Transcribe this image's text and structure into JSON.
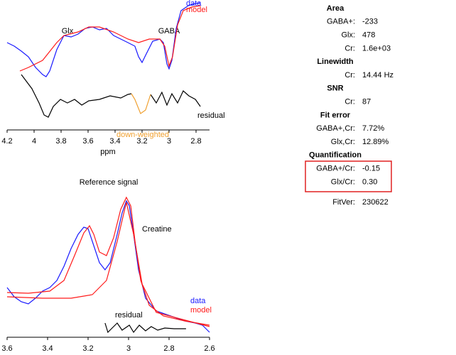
{
  "chart_data": [
    {
      "type": "line",
      "xlabel": "ppm",
      "xlim": [
        4.2,
        2.7
      ],
      "xticks": [
        4.2,
        4,
        3.8,
        3.6,
        3.4,
        3.2,
        3,
        2.8
      ],
      "ylim": [
        0,
        183
      ],
      "annotations": [
        "Glx",
        "GABA"
      ],
      "note": "down-weighted",
      "series": [
        {
          "name": "data",
          "color": "#1a1aff",
          "x": [
            4.2,
            4.147,
            4.095,
            4.042,
            3.989,
            3.937,
            3.911,
            3.884,
            3.832,
            3.779,
            3.726,
            3.674,
            3.621,
            3.568,
            3.516,
            3.463,
            3.411,
            3.358,
            3.305,
            3.253,
            3.226,
            3.2,
            3.174,
            3.121,
            3.068,
            3.042,
            3.016,
            3.0,
            2.979,
            2.947,
            2.911,
            2.858,
            2.805,
            2.768
          ],
          "values": [
            123,
            118,
            111,
            103,
            88,
            78,
            75,
            83,
            113,
            133,
            131,
            135,
            143,
            145,
            141,
            143,
            133,
            128,
            123,
            118,
            103,
            95,
            105,
            125,
            128,
            123,
            93,
            86,
            98,
            143,
            168,
            175,
            178,
            179
          ]
        },
        {
          "name": "model",
          "color": "#ff1a1a",
          "x": [
            4.105,
            4.042,
            3.937,
            3.832,
            3.779,
            3.674,
            3.595,
            3.516,
            3.411,
            3.305,
            3.226,
            3.147,
            3.068,
            3.032,
            3.0,
            2.974,
            2.937,
            2.895,
            2.832,
            2.768
          ],
          "values": [
            83,
            88,
            98,
            123,
            133,
            138,
            145,
            145,
            138,
            128,
            123,
            128,
            128,
            118,
            90,
            103,
            148,
            168,
            173,
            175
          ]
        },
        {
          "name": "residual",
          "color": "#000000",
          "x": [
            4.095,
            4.016,
            3.963,
            3.926,
            3.895,
            3.858,
            3.805,
            3.753,
            3.7,
            3.647,
            3.595,
            3.516,
            3.437,
            3.358,
            3.305,
            3.279,
            3.2,
            3.137,
            3.095,
            3.053,
            3.016,
            2.979,
            2.937,
            2.895,
            2.853,
            2.805,
            2.768
          ],
          "values": [
            78,
            58,
            38,
            21,
            18,
            33,
            43,
            38,
            43,
            35,
            41,
            43,
            48,
            45,
            50,
            51,
            null,
            50,
            38,
            53,
            35,
            51,
            38,
            55,
            48,
            43,
            33
          ]
        },
        {
          "color": "#f0a030",
          "x": [
            3.279,
            3.253,
            3.211,
            3.174,
            3.137
          ],
          "values": [
            51,
            43,
            23,
            28,
            50
          ]
        }
      ]
    },
    {
      "type": "line",
      "title": "Reference signal",
      "xlim": [
        3.6,
        2.6
      ],
      "xticks": [
        3.6,
        3.4,
        3.2,
        3,
        2.8,
        2.6
      ],
      "ylim": [
        0,
        250
      ],
      "annotations": [
        "Creatine"
      ],
      "series": [
        {
          "name": "data",
          "color": "#1a1aff",
          "x": [
            3.6,
            3.565,
            3.53,
            3.495,
            3.46,
            3.425,
            3.389,
            3.354,
            3.319,
            3.284,
            3.249,
            3.221,
            3.2,
            3.179,
            3.144,
            3.116,
            3.091,
            3.056,
            3.032,
            3.011,
            2.996,
            2.975,
            2.951,
            2.916,
            2.863,
            2.793,
            2.723,
            2.67,
            2.635,
            2.6
          ],
          "values": [
            70,
            57,
            50,
            47,
            55,
            65,
            70,
            80,
            100,
            125,
            145,
            155,
            153,
            135,
            105,
            95,
            105,
            145,
            175,
            192,
            185,
            145,
            95,
            55,
            37,
            30,
            23,
            20,
            17,
            7
          ]
        },
        {
          "name": "model",
          "color": "#ff1a1a",
          "x": [
            3.6,
            3.495,
            3.389,
            3.319,
            3.267,
            3.221,
            3.193,
            3.172,
            3.144,
            3.109,
            3.074,
            3.039,
            3.011,
            2.989,
            2.968,
            2.94,
            2.898,
            2.828,
            2.723,
            2.6
          ],
          "values": [
            63,
            62,
            65,
            80,
            115,
            147,
            157,
            145,
            120,
            115,
            140,
            180,
            197,
            185,
            135,
            80,
            45,
            30,
            23,
            17
          ]
        },
        {
          "color": "#ff1a1a",
          "x": [
            3.6,
            3.425,
            3.284,
            3.179,
            3.109,
            3.056,
            3.011,
            2.975,
            2.933,
            2.863,
            2.6
          ],
          "values": [
            57,
            55,
            55,
            60,
            80,
            135,
            190,
            145,
            75,
            35,
            15
          ]
        },
        {
          "name": "residual",
          "color": "#000000",
          "x": [
            3.116,
            3.102,
            3.081,
            3.056,
            3.032,
            2.996,
            2.975,
            2.947,
            2.916,
            2.888,
            2.856,
            2.821,
            2.775,
            2.716
          ],
          "values": [
            20,
            7,
            13,
            20,
            10,
            17,
            7,
            17,
            9,
            15,
            10,
            13,
            12,
            12
          ]
        }
      ]
    }
  ],
  "table": {
    "sections": [
      {
        "title": "Area",
        "rows": [
          [
            "GABA+:",
            "-233"
          ],
          [
            "Glx:",
            "478"
          ],
          [
            "Cr:",
            "1.6e+03"
          ]
        ]
      },
      {
        "title": "Linewidth",
        "rows": [
          [
            "Cr:",
            "14.44 Hz"
          ]
        ]
      },
      {
        "title": "SNR",
        "rows": [
          [
            "Cr:",
            "87"
          ]
        ]
      },
      {
        "title": "Fit error",
        "rows": [
          [
            "GABA+,Cr:",
            "7.72%"
          ],
          [
            "Glx,Cr:",
            "12.89%"
          ]
        ]
      },
      {
        "title": "Quantification",
        "rows": [
          [
            "GABA+/Cr:",
            "-0.15"
          ],
          [
            "Glx/Cr:",
            "0.30"
          ]
        ]
      }
    ],
    "footer": [
      "FitVer:",
      "230622"
    ]
  }
}
